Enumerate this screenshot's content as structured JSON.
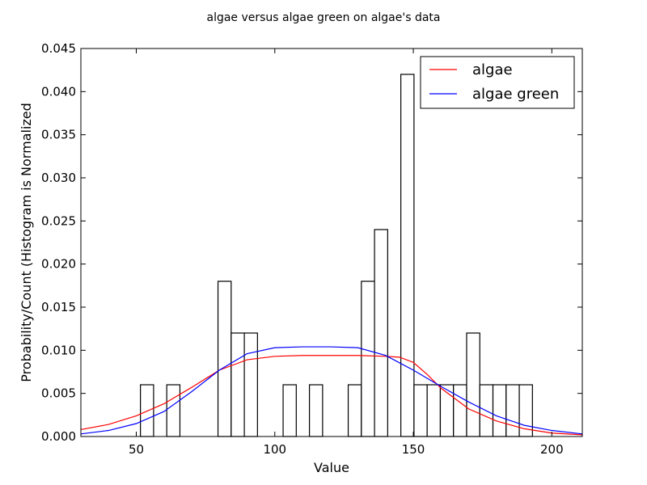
{
  "chart_data": {
    "type": "bar",
    "title": "algae versus algae green on algae's data",
    "xlabel": "Value",
    "ylabel": "Probability/Count (Histogram is Normalized",
    "xlim": [
      30,
      211
    ],
    "ylim": [
      0,
      0.045
    ],
    "xticks": [
      50,
      100,
      150,
      200
    ],
    "yticks": [
      0.0,
      0.005,
      0.01,
      0.015,
      0.02,
      0.025,
      0.03,
      0.035,
      0.04,
      0.045
    ],
    "ytick_labels": [
      "0.000",
      "0.005",
      "0.010",
      "0.015",
      "0.020",
      "0.025",
      "0.030",
      "0.035",
      "0.040",
      "0.045"
    ],
    "legend_position": "top-right",
    "histogram": {
      "bin_width": 4.75,
      "bins": [
        {
          "x0": 51.5,
          "value": 0.006
        },
        {
          "x0": 61.0,
          "value": 0.006
        },
        {
          "x0": 79.5,
          "value": 0.018
        },
        {
          "x0": 84.25,
          "value": 0.012
        },
        {
          "x0": 89.0,
          "value": 0.012
        },
        {
          "x0": 103.0,
          "value": 0.006
        },
        {
          "x0": 112.5,
          "value": 0.006
        },
        {
          "x0": 126.5,
          "value": 0.006
        },
        {
          "x0": 131.25,
          "value": 0.018
        },
        {
          "x0": 136.0,
          "value": 0.024
        },
        {
          "x0": 145.5,
          "value": 0.042
        },
        {
          "x0": 150.25,
          "value": 0.006
        },
        {
          "x0": 155.0,
          "value": 0.006
        },
        {
          "x0": 159.75,
          "value": 0.006
        },
        {
          "x0": 164.5,
          "value": 0.006
        },
        {
          "x0": 169.25,
          "value": 0.012
        },
        {
          "x0": 174.0,
          "value": 0.006
        },
        {
          "x0": 178.75,
          "value": 0.006
        },
        {
          "x0": 183.5,
          "value": 0.006
        },
        {
          "x0": 188.25,
          "value": 0.006
        }
      ]
    },
    "series": [
      {
        "name": "algae",
        "color": "#ff0000",
        "points": [
          [
            30,
            0.0008
          ],
          [
            40,
            0.0014
          ],
          [
            50,
            0.0024
          ],
          [
            60,
            0.0038
          ],
          [
            70,
            0.0057
          ],
          [
            80,
            0.0077
          ],
          [
            90,
            0.0089
          ],
          [
            100,
            0.0093
          ],
          [
            110,
            0.0094
          ],
          [
            120,
            0.0094
          ],
          [
            130,
            0.0094
          ],
          [
            140,
            0.0093
          ],
          [
            145,
            0.0092
          ],
          [
            150,
            0.0086
          ],
          [
            155,
            0.0072
          ],
          [
            160,
            0.0056
          ],
          [
            170,
            0.0032
          ],
          [
            180,
            0.0018
          ],
          [
            190,
            0.0009
          ],
          [
            200,
            0.0004
          ],
          [
            211,
            0.0002
          ]
        ]
      },
      {
        "name": "algae green",
        "color": "#0000ff",
        "points": [
          [
            30,
            0.0003
          ],
          [
            40,
            0.0007
          ],
          [
            50,
            0.0015
          ],
          [
            60,
            0.0029
          ],
          [
            70,
            0.0052
          ],
          [
            80,
            0.0077
          ],
          [
            90,
            0.0096
          ],
          [
            100,
            0.0103
          ],
          [
            110,
            0.0104
          ],
          [
            120,
            0.0104
          ],
          [
            130,
            0.0103
          ],
          [
            140,
            0.0094
          ],
          [
            150,
            0.0077
          ],
          [
            160,
            0.0058
          ],
          [
            170,
            0.004
          ],
          [
            180,
            0.0024
          ],
          [
            190,
            0.0013
          ],
          [
            200,
            0.0007
          ],
          [
            211,
            0.0003
          ]
        ]
      }
    ]
  }
}
